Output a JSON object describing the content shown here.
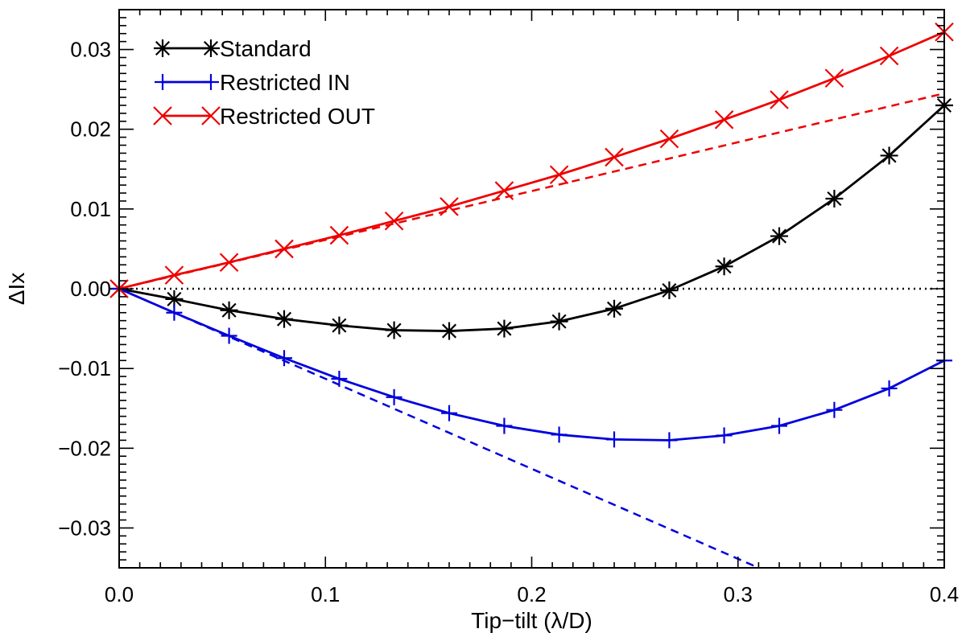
{
  "chart_data": {
    "type": "line",
    "title": "",
    "xlabel": "Tip−tilt (λ/D)",
    "ylabel": "ΔIx",
    "xlim": [
      0.0,
      0.4
    ],
    "ylim": [
      -0.035,
      0.035
    ],
    "x_ticks": [
      0.0,
      0.1,
      0.2,
      0.3,
      0.4
    ],
    "x_tick_labels": [
      "0.0",
      "0.1",
      "0.2",
      "0.3",
      "0.4"
    ],
    "y_ticks": [
      0.03,
      0.02,
      0.01,
      0.0,
      -0.01,
      -0.02,
      -0.03
    ],
    "y_tick_labels": [
      "0.03",
      "0.02",
      "0.01",
      "0.00",
      "−0.01",
      "−0.02",
      "−0.03"
    ],
    "legend_position": "top-left",
    "x": [
      0.0,
      0.0267,
      0.0533,
      0.08,
      0.1067,
      0.1333,
      0.16,
      0.1867,
      0.2133,
      0.24,
      0.2667,
      0.2933,
      0.32,
      0.3467,
      0.3733,
      0.4
    ],
    "series": [
      {
        "name": "Standard",
        "color": "#000000",
        "marker": "asterisk",
        "style": "solid",
        "values": [
          0.0,
          -0.0013,
          -0.0027,
          -0.0038,
          -0.0046,
          -0.0052,
          -0.0053,
          -0.005,
          -0.0041,
          -0.0025,
          -0.0002,
          0.0028,
          0.0066,
          0.0113,
          0.0167,
          0.023
        ]
      },
      {
        "name": "Restricted IN",
        "color": "#0000dd",
        "marker": "plus",
        "style": "solid",
        "values": [
          0.0,
          -0.003,
          -0.0059,
          -0.0087,
          -0.0113,
          -0.0136,
          -0.0156,
          -0.0172,
          -0.0183,
          -0.0189,
          -0.019,
          -0.0184,
          -0.0172,
          -0.0152,
          -0.0125,
          -0.009
        ]
      },
      {
        "name": "Restricted OUT",
        "color": "#ee0000",
        "marker": "x",
        "style": "solid",
        "values": [
          0.0,
          0.0017,
          0.0033,
          0.005,
          0.0067,
          0.0085,
          0.0103,
          0.0123,
          0.0143,
          0.0165,
          0.0188,
          0.0212,
          0.0237,
          0.0264,
          0.0292,
          0.0322
        ]
      }
    ],
    "reference_lines": [
      {
        "name": "Restricted OUT linear",
        "color": "#ee0000",
        "style": "dashed",
        "x": [
          0.0,
          0.4
        ],
        "values": [
          0.0,
          0.0245
        ]
      },
      {
        "name": "Restricted IN linear",
        "color": "#0000dd",
        "style": "dashed",
        "x": [
          0.0,
          0.31
        ],
        "values": [
          0.0,
          -0.035
        ]
      },
      {
        "name": "Zero line",
        "color": "#000000",
        "style": "dotted",
        "x": [
          0.0,
          0.4
        ],
        "values": [
          0.0,
          0.0
        ]
      }
    ]
  }
}
